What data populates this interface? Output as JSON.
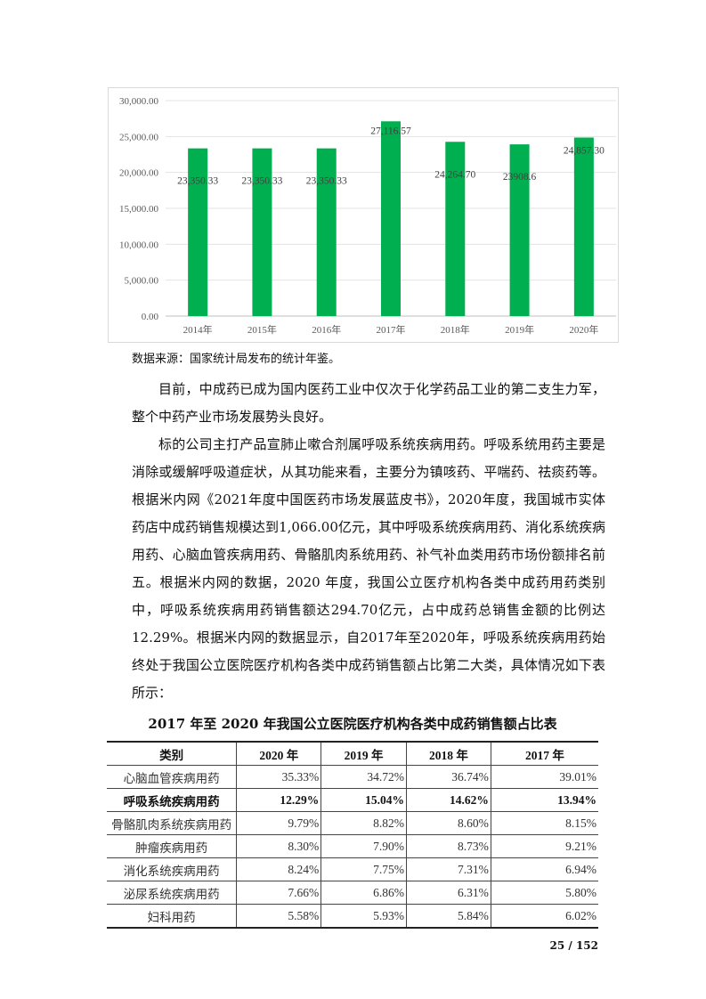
{
  "chart_data": {
    "type": "bar",
    "categories": [
      "2014年",
      "2015年",
      "2016年",
      "2017年",
      "2018年",
      "2019年",
      "2020年"
    ],
    "values": [
      23350.33,
      23350.33,
      23350.33,
      27116.57,
      24264.7,
      23908.6,
      24857.3
    ],
    "data_labels": [
      "23,350.33",
      "23,350.33",
      "23,350.33",
      "27,116.57",
      "24,264.70",
      "23908.6",
      "24,857.30"
    ],
    "yticks": [
      "0.00",
      "5,000.00",
      "10,000.00",
      "15,000.00",
      "20,000.00",
      "25,000.00",
      "30,000.00"
    ],
    "ylim": [
      0,
      30000
    ],
    "grid": true,
    "bar_color": "#00b050"
  },
  "source_note": "数据来源：国家统计局发布的统计年鉴。",
  "paragraphs": [
    "目前，中成药已成为国内医药工业中仅次于化学药品工业的第二支生力军，整个中药产业市场发展势头良好。",
    "标的公司主打产品宣肺止嗽合剂属呼吸系统疾病用药。呼吸系统用药主要是消除或缓解呼吸道症状，从其功能来看，主要分为镇咳药、平喘药、祛痰药等。根据米内网《2021年度中国医药市场发展蓝皮书》，2020年度，我国城市实体药店中成药销售规模达到1,066.00亿元，其中呼吸系统疾病用药、消化系统疾病用药、心脑血管疾病用药、骨骼肌肉系统用药、补气补血类用药市场份额排名前五。根据米内网的数据，2020 年度，我国公立医疗机构各类中成药用药类别中，呼吸系统疾病用药销售额达294.70亿元，占中成药总销售金额的比例达12.29%。根据米内网的数据显示，自2017年至2020年，呼吸系统疾病用药始终处于我国公立医院医疗机构各类中成药销售额占比第二大类，具体情况如下表所示："
  ],
  "table": {
    "title": "2017 年至 2020 年我国公立医院医疗机构各类中成药销售额占比表",
    "headers": [
      "类别",
      "2020 年",
      "2019 年",
      "2018 年",
      "2017 年"
    ],
    "rows": [
      [
        "心脑血管疾病用药",
        "35.33%",
        "34.72%",
        "36.74%",
        "39.01%"
      ],
      [
        "呼吸系统疾病用药",
        "12.29%",
        "15.04%",
        "14.62%",
        "13.94%"
      ],
      [
        "骨骼肌肉系统疾病用药",
        "9.79%",
        "8.82%",
        "8.60%",
        "8.15%"
      ],
      [
        "肿瘤疾病用药",
        "8.30%",
        "7.90%",
        "8.73%",
        "9.21%"
      ],
      [
        "消化系统疾病用药",
        "8.24%",
        "7.75%",
        "7.31%",
        "6.94%"
      ],
      [
        "泌尿系统疾病用药",
        "7.66%",
        "6.86%",
        "6.31%",
        "5.80%"
      ],
      [
        "妇科用药",
        "5.58%",
        "5.93%",
        "5.84%",
        "6.02%"
      ]
    ]
  },
  "page_number": "25 / 152"
}
